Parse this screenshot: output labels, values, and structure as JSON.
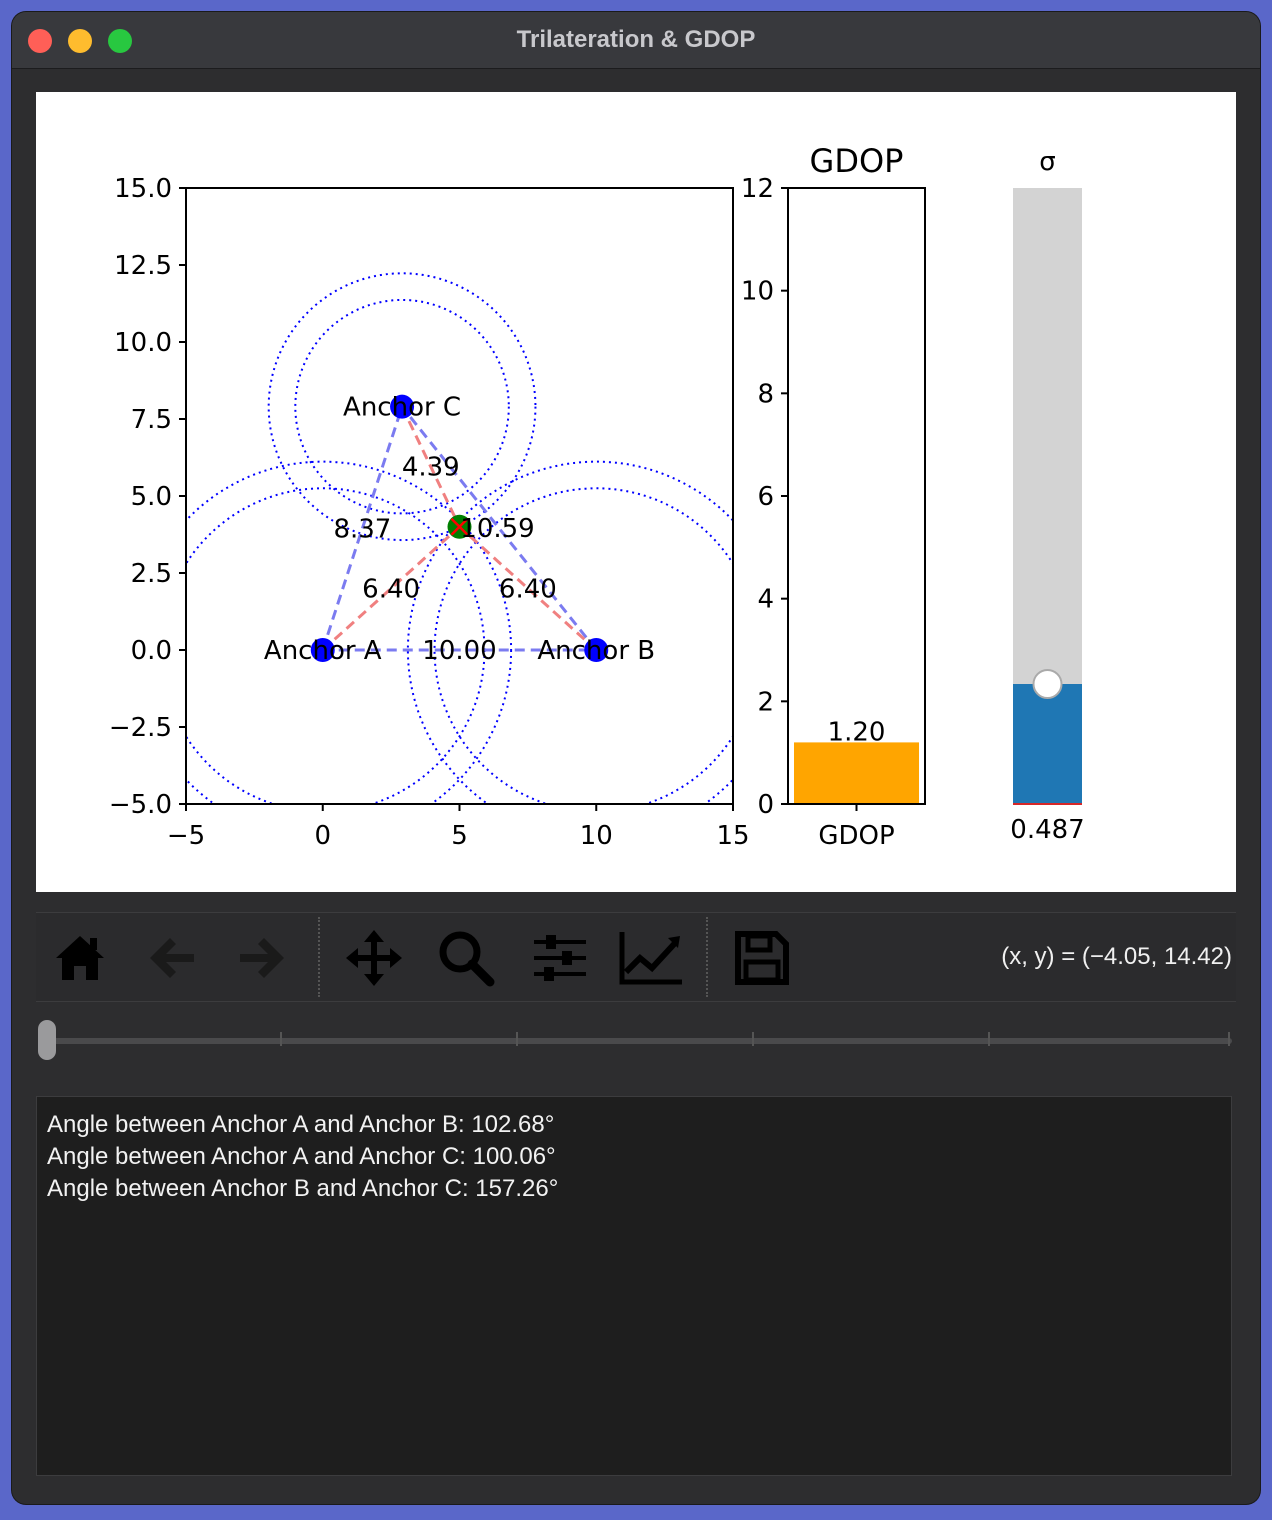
{
  "window": {
    "title": "Trilateration & GDOP"
  },
  "toolbar": {
    "buttons": [
      {
        "name": "home",
        "icon": "home-icon",
        "enabled": true
      },
      {
        "name": "back",
        "icon": "arrow-left-icon",
        "enabled": false
      },
      {
        "name": "forward",
        "icon": "arrow-right-icon",
        "enabled": false
      },
      {
        "name": "pan",
        "icon": "move-icon",
        "enabled": true
      },
      {
        "name": "zoom",
        "icon": "magnifier-icon",
        "enabled": true
      },
      {
        "name": "configure",
        "icon": "sliders-icon",
        "enabled": true
      },
      {
        "name": "edit-axes",
        "icon": "chart-line-icon",
        "enabled": true
      },
      {
        "name": "save",
        "icon": "floppy-disk-icon",
        "enabled": true
      }
    ],
    "coords": "(x, y) = (−4.05, 14.42)"
  },
  "frame_slider": {
    "value": 0,
    "ticks": 6
  },
  "output": {
    "lines": [
      "Angle between Anchor A and Anchor B: 102.68°",
      "Angle between Anchor A and Anchor C: 100.06°",
      "Angle between Anchor B and Anchor C: 157.26°"
    ]
  },
  "chart_data": [
    {
      "type": "scatter",
      "xlim": [
        -5,
        15
      ],
      "ylim": [
        -5,
        15
      ],
      "xticks": [
        "−5",
        "0",
        "5",
        "10",
        "15"
      ],
      "yticks": [
        "−5.0",
        "−2.5",
        "0.0",
        "2.5",
        "5.0",
        "7.5",
        "10.0",
        "12.5",
        "15.0"
      ],
      "anchors": [
        {
          "label": "Anchor A",
          "x": 0,
          "y": 0
        },
        {
          "label": "Anchor B",
          "x": 10,
          "y": 0
        },
        {
          "label": "Anchor C",
          "x": 2.9,
          "y": 7.9
        }
      ],
      "target": {
        "x": 5,
        "y": 4
      },
      "anchor_distances": [
        {
          "from": "Anchor A",
          "to": "Anchor B",
          "label": "10.00"
        },
        {
          "from": "Anchor A",
          "to": "Anchor C",
          "label": "8.37"
        },
        {
          "from": "Anchor B",
          "to": "Anchor C",
          "label": "10.59"
        }
      ],
      "target_distances": [
        {
          "anchor": "Anchor A",
          "label": "6.40"
        },
        {
          "anchor": "Anchor B",
          "label": "6.40"
        },
        {
          "anchor": "Anchor C",
          "label": "4.39"
        }
      ],
      "ranging_circles": [
        {
          "anchor": "Anchor A",
          "radii": [
            5.913,
            6.887
          ]
        },
        {
          "anchor": "Anchor B",
          "radii": [
            5.913,
            6.887
          ]
        },
        {
          "anchor": "Anchor C",
          "radii": [
            3.903,
            4.877
          ]
        }
      ],
      "colors": {
        "anchor": "#0000ff",
        "target": "#008000",
        "anchor_lines": "#7b7bf0",
        "target_lines": "#f08080",
        "circles": "#0000ff"
      },
      "grid": false
    },
    {
      "type": "bar",
      "title": "GDOP",
      "categories": [
        "GDOP"
      ],
      "values": [
        1.2
      ],
      "value_label": "1.20",
      "ylim": [
        0,
        12
      ],
      "yticks": [
        "0",
        "2",
        "4",
        "6",
        "8",
        "10",
        "12"
      ],
      "color": "#ffa500"
    },
    {
      "type": "bar",
      "title": "σ",
      "values": [
        0.487
      ],
      "value_label": "0.487",
      "range": [
        0,
        2.5
      ],
      "fill_color": "#1f77b4",
      "track_color": "#d3d3d3"
    }
  ]
}
